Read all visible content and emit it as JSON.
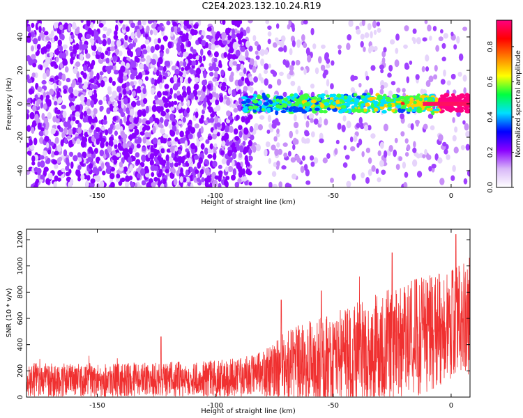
{
  "title": "C2E4.2023.132.10.24.R19",
  "chart_data": [
    {
      "type": "heatmap",
      "xlabel": "Height of straight line (km)",
      "ylabel": "Frequency (Hz)",
      "xlim": [
        -180,
        8
      ],
      "ylim": [
        -50,
        50
      ],
      "xticks": [
        -150,
        -100,
        -50,
        0
      ],
      "yticks": [
        -40,
        -20,
        0,
        20,
        40
      ],
      "colorbar": {
        "label": "Normalized spectral amplitude",
        "range": [
          0,
          0.95
        ],
        "ticks": [
          0.0,
          0.2,
          0.4,
          0.6,
          0.8
        ],
        "tick_labels": [
          "0.0",
          "0.2",
          "0.4",
          "0.6",
          "0.8"
        ],
        "palette": [
          "#ffffff",
          "#d8b8f8",
          "#8a00ff",
          "#0000ff",
          "#00e0ff",
          "#00ff40",
          "#ffff00",
          "#ff8000",
          "#ff0000",
          "#ff0080"
        ]
      },
      "signal_band": {
        "x_start": -88,
        "x_end": 8,
        "center_hz": 0,
        "width_hz": 8
      },
      "grid": false
    },
    {
      "type": "line",
      "xlabel": "Height of straight line (km)",
      "ylabel": "SNR (10 * v/v)",
      "xlim": [
        -180,
        8
      ],
      "ylim": [
        0,
        1280
      ],
      "xticks": [
        -150,
        -100,
        -50,
        0
      ],
      "yticks": [
        0,
        200,
        400,
        600,
        800,
        1000,
        1200
      ],
      "series": [
        {
          "color": "#f03030",
          "envelope": {
            "x": [
              -180,
              -160,
              -140,
              -120,
              -100,
              -90,
              -80,
              -75,
              -70,
              -60,
              -50,
              -40,
              -30,
              -20,
              -10,
              0,
              8
            ],
            "base": [
              130,
              130,
              130,
              135,
              140,
              150,
              180,
              210,
              230,
              260,
              290,
              330,
              370,
              420,
              480,
              560,
              620
            ],
            "spread": [
              130,
              130,
              130,
              135,
              140,
              150,
              170,
              220,
              280,
              320,
              360,
              390,
              430,
              450,
              450,
              420,
              450
            ],
            "peaks": [
              [
                -123,
                460
              ],
              [
                -72,
                740
              ],
              [
                -55,
                810
              ],
              [
                -25,
                1100
              ],
              [
                2,
                1240
              ]
            ]
          }
        }
      ],
      "grid": false
    }
  ]
}
